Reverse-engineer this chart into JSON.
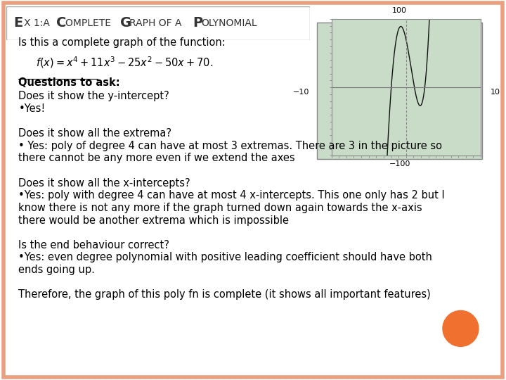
{
  "title_parts": [
    "EX 1:",
    "A ",
    "C",
    "OMPLETE ",
    "G",
    "RAPH OF A ",
    "P",
    "OLYNOMIAL"
  ],
  "background_color": "#FFFFFF",
  "border_color": "#E8A080",
  "line1": "Is this a complete graph of the function:",
  "section1_title": "Questions to ask:",
  "section2_title": "Does it show all the extrema?",
  "section2_body1": "• Yes: poly of degree 4 can have at most 3 extremas. There are 3 in the picture so",
  "section2_body2": "there cannot be any more even if we extend the axes",
  "section3_title": "Does it show all the x-intercepts?",
  "section3_body1": "•Yes: poly with degree 4 can have at most 4 x-intercepts. This one only has 2 but I",
  "section3_body2": "know there is not any more if the graph turned down again towards the x-axis",
  "section3_body3": "there would be another extrema which is impossible",
  "section4_title": "Is the end behaviour correct?",
  "section4_body1": "•Yes: even degree polynomial with positive leading coefficient should have both",
  "section4_body2": "ends going up.",
  "section5": "Therefore, the graph of this poly fn is complete (it shows all important features)",
  "orange_circle_color": "#F07030",
  "graph_bg_color": "#C8DCC8",
  "graph_line_color": "#111111",
  "graph_axis_color": "#555555",
  "xlim": [
    -10,
    10
  ],
  "ylim": [
    -100,
    100
  ]
}
